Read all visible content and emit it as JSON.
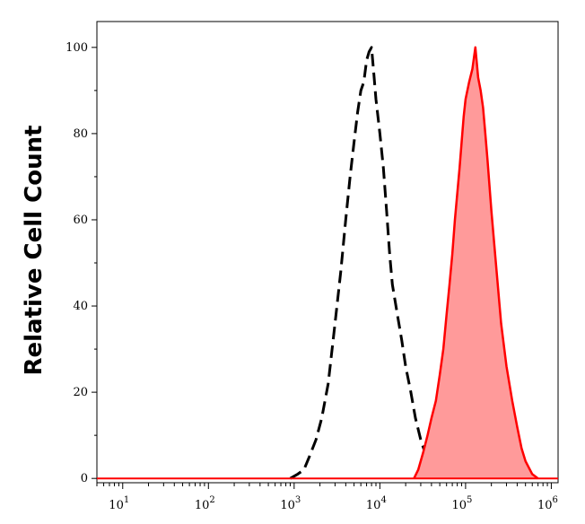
{
  "chart_data": {
    "type": "area",
    "title": "",
    "xlabel": "",
    "ylabel": "Relative Cell Count",
    "x_scale": "log",
    "xlim": [
      5,
      1200000
    ],
    "ylim": [
      -1,
      106
    ],
    "xticks": [
      {
        "value": 10,
        "base": "10",
        "exp": "1"
      },
      {
        "value": 100,
        "base": "10",
        "exp": "2"
      },
      {
        "value": 1000,
        "base": "10",
        "exp": "3"
      },
      {
        "value": 10000,
        "base": "10",
        "exp": "4"
      },
      {
        "value": 100000,
        "base": "10",
        "exp": "5"
      },
      {
        "value": 1000000,
        "base": "10",
        "exp": "6"
      }
    ],
    "yticks": [
      {
        "value": 0,
        "label": "0"
      },
      {
        "value": 20,
        "label": "20"
      },
      {
        "value": 40,
        "label": "40"
      },
      {
        "value": 60,
        "label": "60"
      },
      {
        "value": 80,
        "label": "80"
      },
      {
        "value": 100,
        "label": "100"
      }
    ],
    "grid": false,
    "legend": "none",
    "series": [
      {
        "style": "dashed",
        "color": "#000000",
        "fill": "none",
        "x": [
          900,
          1100,
          1300,
          1500,
          1800,
          2100,
          2500,
          3000,
          3500,
          4000,
          4500,
          5000,
          5500,
          6000,
          6500,
          7000,
          7500,
          8000,
          8500,
          9000,
          10000,
          11000,
          12000,
          13000,
          14000,
          16000,
          18000,
          20000,
          23000,
          26000,
          30000,
          35000,
          40000,
          45000,
          50000
        ],
        "y": [
          0,
          1,
          2,
          5,
          9,
          14,
          22,
          36,
          48,
          60,
          70,
          78,
          85,
          90,
          92,
          97,
          99,
          100,
          94,
          88,
          80,
          72,
          62,
          52,
          45,
          38,
          32,
          26,
          20,
          14,
          9,
          5,
          2,
          1,
          0
        ]
      },
      {
        "style": "solid",
        "color": "#ff0000",
        "fill": "#ff9a9a",
        "x": [
          25000,
          28000,
          32000,
          36000,
          40000,
          45000,
          50000,
          55000,
          60000,
          65000,
          70000,
          75000,
          80000,
          85000,
          90000,
          95000,
          100000,
          110000,
          120000,
          130000,
          140000,
          150000,
          160000,
          170000,
          180000,
          200000,
          230000,
          260000,
          300000,
          350000,
          400000,
          450000,
          500000,
          600000,
          700000
        ],
        "y": [
          0,
          2,
          6,
          10,
          14,
          18,
          24,
          30,
          38,
          45,
          52,
          60,
          66,
          72,
          78,
          84,
          88,
          92,
          95,
          100,
          93,
          90,
          86,
          80,
          74,
          62,
          48,
          36,
          26,
          18,
          12,
          7,
          4,
          1,
          0
        ]
      }
    ]
  }
}
